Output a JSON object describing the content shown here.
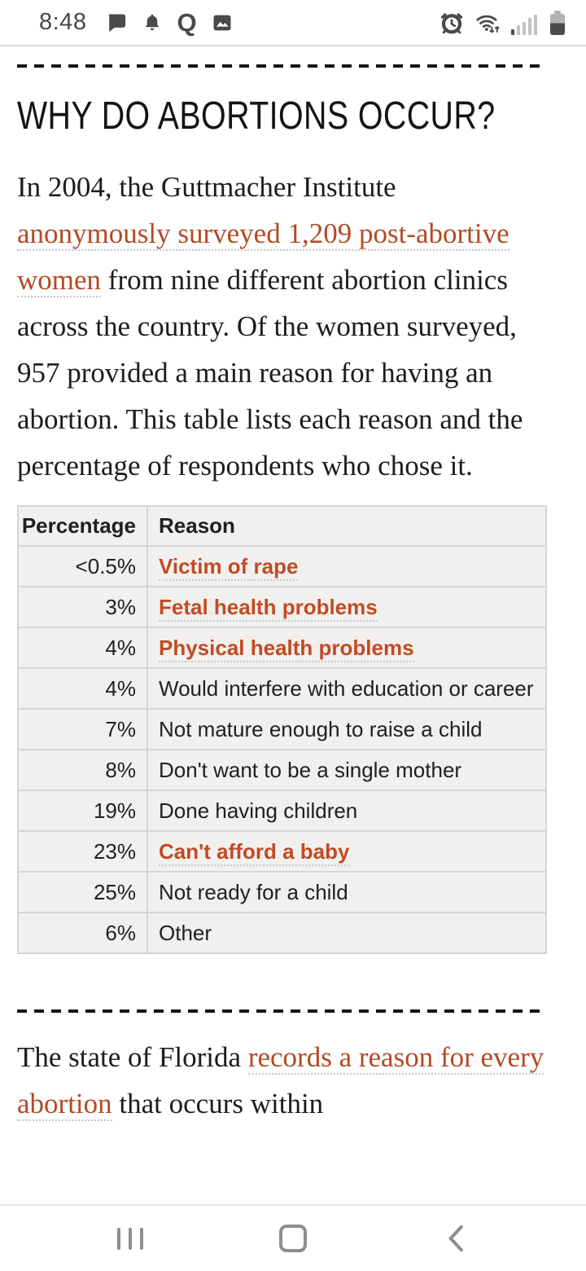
{
  "status_bar": {
    "time": "8:48",
    "left_icons": [
      "chat-icon",
      "bell-icon",
      "quora-icon",
      "gallery-icon"
    ],
    "quora_glyph": "Q",
    "right_icons": [
      "alarm-icon",
      "wifi-icon",
      "signal-icon",
      "battery-icon"
    ]
  },
  "article": {
    "heading": "WHY DO ABORTIONS OCCUR?",
    "p1": {
      "segments": [
        "In 2004, the Guttmacher Institute ",
        "anonymously surveyed 1,209 post-abortive women",
        " from nine different abortion clinics across the country. Of the women surveyed, 957 provided a main reason for having an abortion. This table lists each reason and the percentage of respondents who chose it."
      ]
    },
    "table": {
      "headers": [
        "Percentage",
        "Reason"
      ],
      "rows": [
        {
          "percentage": "<0.5%",
          "reason": "Victim of rape",
          "link": true
        },
        {
          "percentage": "3%",
          "reason": "Fetal health problems",
          "link": true
        },
        {
          "percentage": "4%",
          "reason": "Physical health problems",
          "link": true
        },
        {
          "percentage": "4%",
          "reason": "Would interfere with education or career",
          "link": false
        },
        {
          "percentage": "7%",
          "reason": "Not mature enough to raise a child",
          "link": false
        },
        {
          "percentage": "8%",
          "reason": "Don't want to be a single mother",
          "link": false
        },
        {
          "percentage": "19%",
          "reason": "Done having children",
          "link": false
        },
        {
          "percentage": "23%",
          "reason": "Can't afford a baby",
          "link": true
        },
        {
          "percentage": "25%",
          "reason": "Not ready for a child",
          "link": false
        },
        {
          "percentage": "6%",
          "reason": "Other",
          "link": false
        }
      ]
    },
    "p2": {
      "segments": [
        "The state of Florida ",
        "records a reason for every abortion",
        " that occurs within"
      ]
    }
  },
  "nav_bar": {
    "icons": [
      "recents-icon",
      "home-icon",
      "back-icon"
    ]
  },
  "colors": {
    "link": "#b34a24",
    "table_link": "#c14b24",
    "text": "#1c1c1c"
  }
}
